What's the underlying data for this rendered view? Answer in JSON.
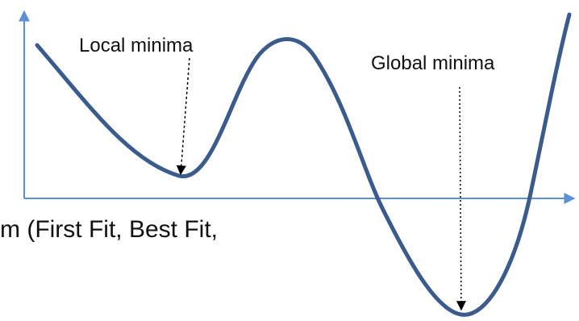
{
  "labels": {
    "local_minima": "Local minima",
    "global_minima": "Global minima"
  },
  "background_text": "m (First Fit, Best Fit,",
  "colors": {
    "curve": "#3b5b8c",
    "axes": "#5b8fd6",
    "arrow": "#000000",
    "text": "#111111"
  }
}
